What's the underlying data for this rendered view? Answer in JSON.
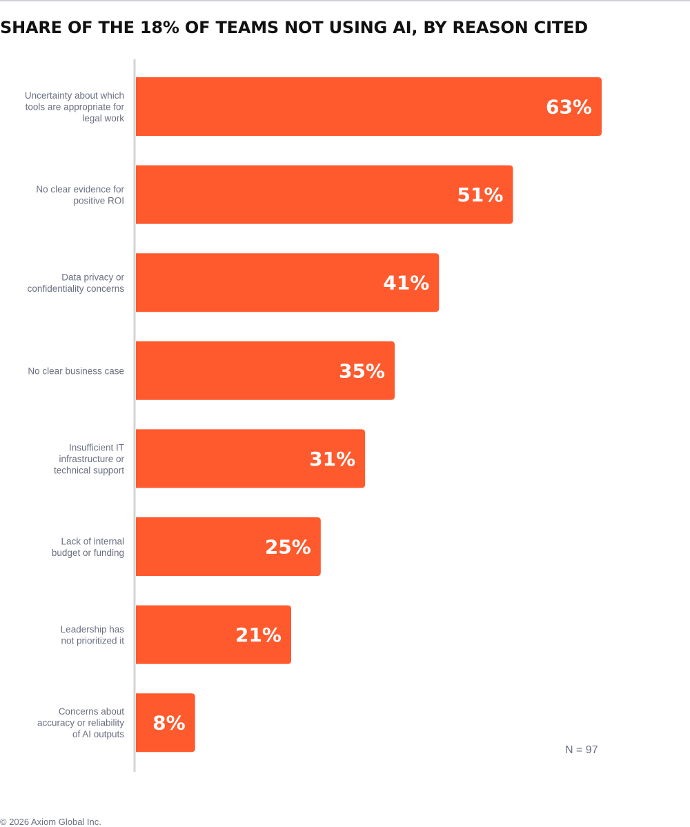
{
  "title": "SHARE OF THE 18% OF TEAMS NOT USING AI, BY REASON CITED",
  "n_label": "N = 97",
  "footer": "© 2026 Axiom Global Inc.",
  "colors": {
    "bar": "#ff5a2e",
    "axis": "#d4d4d4",
    "label": "#6b6f80",
    "value": "#ffffff"
  },
  "chart_data": {
    "type": "bar",
    "orientation": "horizontal",
    "categories": [
      [
        "Uncertainty about which",
        "tools are appropriate for",
        "legal work"
      ],
      [
        "No clear evidence for",
        "positive ROI"
      ],
      [
        "Data privacy or",
        "confidentiality concerns"
      ],
      [
        "No clear business case"
      ],
      [
        "Insufficient IT",
        "infrastructure or",
        "technical support"
      ],
      [
        "Lack of internal",
        "budget or funding"
      ],
      [
        "Leadership has",
        "not prioritized it"
      ],
      [
        "Concerns about",
        "accuracy or reliability",
        "of AI outputs"
      ]
    ],
    "values": [
      63,
      51,
      41,
      35,
      31,
      25,
      21,
      8
    ],
    "value_labels": [
      "63%",
      "51%",
      "41%",
      "35%",
      "31%",
      "25%",
      "21%",
      "8%"
    ],
    "unit": "%",
    "grid": false,
    "legend": "none"
  }
}
